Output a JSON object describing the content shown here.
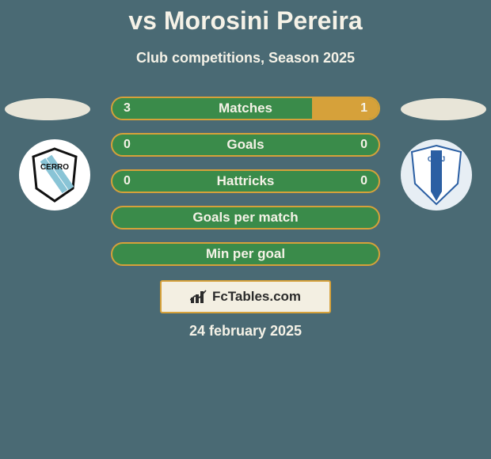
{
  "background_color": "#4a6a74",
  "text_color": "#f5f2e7",
  "title": "vs Morosini Pereira",
  "title_fontsize": 32,
  "subtitle": "Club competitions, Season 2025",
  "subtitle_fontsize": 18,
  "accent_left": "#3a8b4a",
  "accent_right": "#d6a13a",
  "row_bg": "#3a8b4a",
  "row_text": "#f5f2e7",
  "ellipse_color": "#e8e5d8",
  "crest_left": {
    "bg": "#ffffff",
    "name": "cerro-crest"
  },
  "crest_right": {
    "bg": "#e7eef4",
    "shield": "#2b5fa3",
    "name": "caj-crest"
  },
  "rows": [
    {
      "label": "Matches",
      "left": "3",
      "right": "1",
      "left_pct": 75,
      "right_pct": 25,
      "show_fill": true
    },
    {
      "label": "Goals",
      "left": "0",
      "right": "0",
      "left_pct": 0,
      "right_pct": 0,
      "show_fill": false
    },
    {
      "label": "Hattricks",
      "left": "0",
      "right": "0",
      "left_pct": 0,
      "right_pct": 0,
      "show_fill": false
    },
    {
      "label": "Goals per match",
      "left": "",
      "right": "",
      "left_pct": 0,
      "right_pct": 0,
      "show_fill": false
    },
    {
      "label": "Min per goal",
      "left": "",
      "right": "",
      "left_pct": 0,
      "right_pct": 0,
      "show_fill": false
    }
  ],
  "brand": {
    "text": "FcTables.com",
    "border": "#d6a13a",
    "bg": "#f3efe2",
    "text_color": "#2b2b2b"
  },
  "date": "24 february 2025"
}
